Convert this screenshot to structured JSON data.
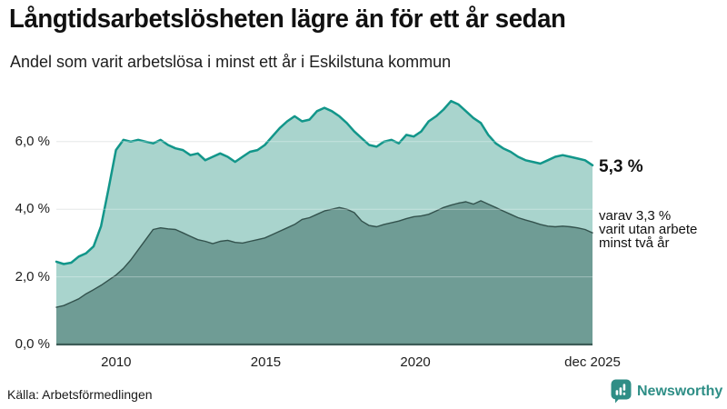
{
  "header": {
    "title": "Långtidsarbetslösheten lägre än för ett år sedan",
    "subtitle": "Andel som varit arbetslösa i minst ett år i Eskilstuna kommun"
  },
  "chart_data": {
    "type": "area",
    "title": "Långtidsarbetslösheten lägre än för ett år sedan",
    "subtitle": "Andel som varit arbetslösa i minst ett år i Eskilstuna kommun",
    "y_unit": "%",
    "ylim": [
      0,
      7.25
    ],
    "t_start": 2008.0,
    "t_end": 2025.92,
    "grid_color": "#dcdfdf",
    "baseline_color": "#3c5b56",
    "yticks": [
      {
        "v": 6,
        "label": "6,0 %"
      },
      {
        "v": 4,
        "label": "4,0 %"
      },
      {
        "v": 2,
        "label": "2,0 %"
      },
      {
        "v": 0,
        "label": "0,0 %"
      }
    ],
    "xticks": [
      {
        "t": 2010,
        "label": "2010"
      },
      {
        "t": 2015,
        "label": "2015"
      },
      {
        "t": 2020,
        "label": "2020"
      },
      {
        "t": 2025.92,
        "label": "dec 2025"
      }
    ],
    "series": [
      {
        "name": "minst ett år",
        "fill": "#a9d4cd",
        "stroke": "#12968a",
        "values": [
          2.45,
          2.38,
          2.42,
          2.6,
          2.7,
          2.9,
          3.5,
          4.6,
          5.75,
          6.05,
          6.0,
          6.05,
          6.0,
          5.95,
          6.05,
          5.9,
          5.8,
          5.75,
          5.6,
          5.65,
          5.45,
          5.55,
          5.65,
          5.55,
          5.4,
          5.55,
          5.7,
          5.75,
          5.9,
          6.15,
          6.4,
          6.6,
          6.75,
          6.6,
          6.65,
          6.9,
          7.0,
          6.9,
          6.75,
          6.55,
          6.3,
          6.1,
          5.9,
          5.85,
          6.0,
          6.05,
          5.95,
          6.2,
          6.15,
          6.3,
          6.6,
          6.75,
          6.95,
          7.2,
          7.1,
          6.9,
          6.7,
          6.55,
          6.2,
          5.95,
          5.8,
          5.7,
          5.55,
          5.45,
          5.4,
          5.35,
          5.45,
          5.55,
          5.6,
          5.55,
          5.5,
          5.45,
          5.3
        ]
      },
      {
        "name": "minst två år",
        "fill": "#6f9c95",
        "stroke": "#33524d",
        "values": [
          1.1,
          1.15,
          1.25,
          1.35,
          1.5,
          1.62,
          1.75,
          1.9,
          2.05,
          2.25,
          2.5,
          2.8,
          3.1,
          3.4,
          3.45,
          3.42,
          3.4,
          3.3,
          3.2,
          3.1,
          3.05,
          2.98,
          3.05,
          3.08,
          3.02,
          3.0,
          3.05,
          3.1,
          3.15,
          3.25,
          3.35,
          3.45,
          3.55,
          3.7,
          3.75,
          3.85,
          3.95,
          4.0,
          4.05,
          4.0,
          3.9,
          3.65,
          3.52,
          3.48,
          3.55,
          3.6,
          3.65,
          3.72,
          3.78,
          3.8,
          3.85,
          3.95,
          4.05,
          4.12,
          4.18,
          4.22,
          4.15,
          4.25,
          4.15,
          4.05,
          3.95,
          3.85,
          3.75,
          3.68,
          3.62,
          3.55,
          3.5,
          3.48,
          3.5,
          3.48,
          3.45,
          3.4,
          3.3
        ]
      }
    ],
    "end_labels": {
      "total": "5,3 %",
      "detail": "varav 3,3 %\nvarit utan arbete\nminst två år"
    }
  },
  "footer": {
    "source": "Källa: Arbetsförmedlingen",
    "brand": "Newsworthy",
    "brand_color": "#2e8e86"
  }
}
